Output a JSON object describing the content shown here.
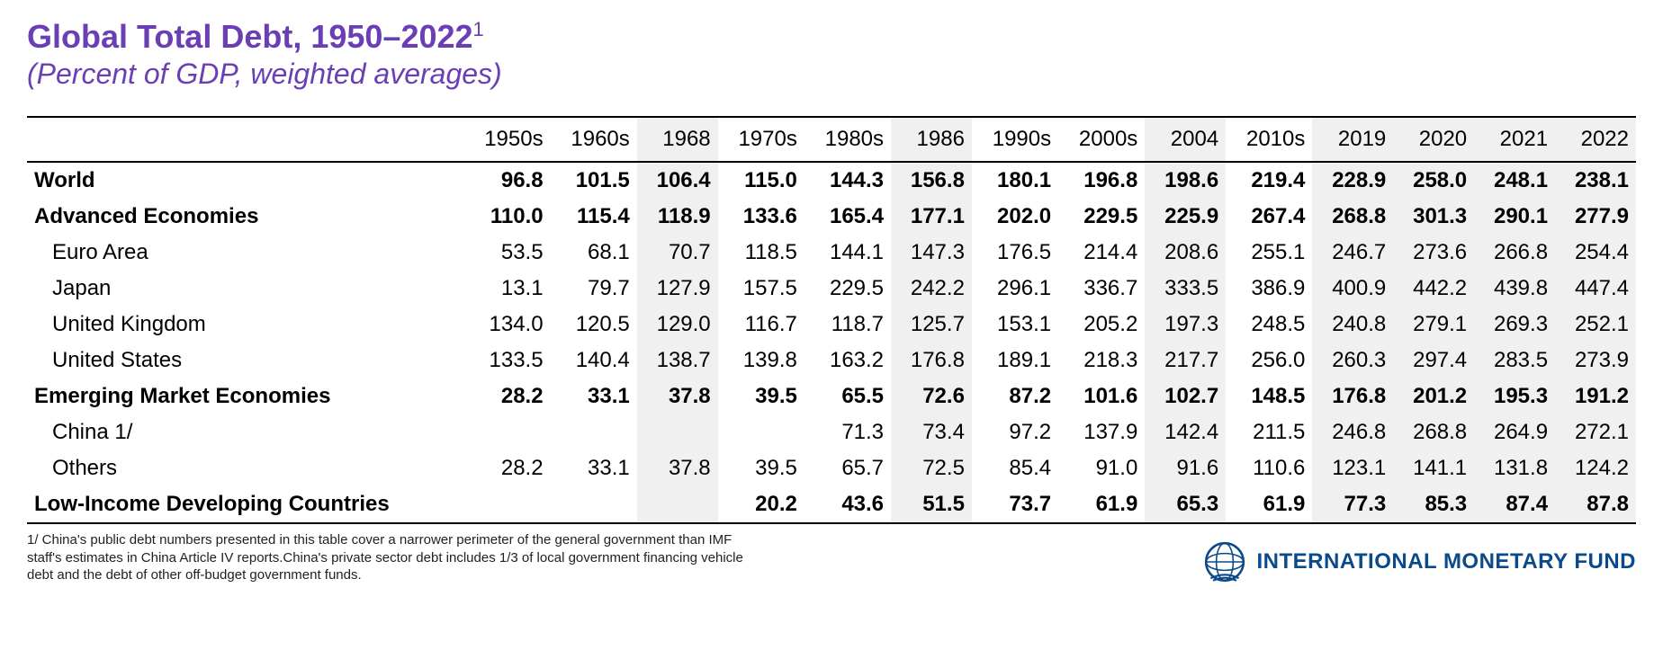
{
  "title_main": "Global Total Debt, 1950–2022",
  "title_sup": "1",
  "subtitle": "(Percent of GDP, weighted averages)",
  "colors": {
    "title_color": "#6a3fb5",
    "shade_bg": "#f0f0f0",
    "border": "#000000",
    "logo_text": "#0a4a8a",
    "logo_blue": "#0a4a8a",
    "background": "#ffffff"
  },
  "typography": {
    "title_fontsize": 36,
    "subtitle_fontsize": 32,
    "table_fontsize": 24,
    "footnote_fontsize": 15,
    "logo_fontsize": 24
  },
  "table": {
    "columns": [
      "",
      "1950s",
      "1960s",
      "1968",
      "1970s",
      "1980s",
      "1986",
      "1990s",
      "2000s",
      "2004",
      "2010s",
      "2019",
      "2020",
      "2021",
      "2022"
    ],
    "shaded_col_indices": [
      3,
      6,
      9,
      11,
      12,
      13,
      14
    ],
    "rows": [
      {
        "label": "World",
        "bold": true,
        "indent": false,
        "values": [
          "96.8",
          "101.5",
          "106.4",
          "115.0",
          "144.3",
          "156.8",
          "180.1",
          "196.8",
          "198.6",
          "219.4",
          "228.9",
          "258.0",
          "248.1",
          "238.1"
        ]
      },
      {
        "label": "Advanced Economies",
        "bold": true,
        "indent": false,
        "values": [
          "110.0",
          "115.4",
          "118.9",
          "133.6",
          "165.4",
          "177.1",
          "202.0",
          "229.5",
          "225.9",
          "267.4",
          "268.8",
          "301.3",
          "290.1",
          "277.9"
        ]
      },
      {
        "label": "Euro Area",
        "bold": false,
        "indent": true,
        "values": [
          "53.5",
          "68.1",
          "70.7",
          "118.5",
          "144.1",
          "147.3",
          "176.5",
          "214.4",
          "208.6",
          "255.1",
          "246.7",
          "273.6",
          "266.8",
          "254.4"
        ]
      },
      {
        "label": "Japan",
        "bold": false,
        "indent": true,
        "values": [
          "13.1",
          "79.7",
          "127.9",
          "157.5",
          "229.5",
          "242.2",
          "296.1",
          "336.7",
          "333.5",
          "386.9",
          "400.9",
          "442.2",
          "439.8",
          "447.4"
        ]
      },
      {
        "label": "United Kingdom",
        "bold": false,
        "indent": true,
        "values": [
          "134.0",
          "120.5",
          "129.0",
          "116.7",
          "118.7",
          "125.7",
          "153.1",
          "205.2",
          "197.3",
          "248.5",
          "240.8",
          "279.1",
          "269.3",
          "252.1"
        ]
      },
      {
        "label": "United States",
        "bold": false,
        "indent": true,
        "values": [
          "133.5",
          "140.4",
          "138.7",
          "139.8",
          "163.2",
          "176.8",
          "189.1",
          "218.3",
          "217.7",
          "256.0",
          "260.3",
          "297.4",
          "283.5",
          "273.9"
        ]
      },
      {
        "label": "Emerging Market Economies",
        "bold": true,
        "indent": false,
        "values": [
          "28.2",
          "33.1",
          "37.8",
          "39.5",
          "65.5",
          "72.6",
          "87.2",
          "101.6",
          "102.7",
          "148.5",
          "176.8",
          "201.2",
          "195.3",
          "191.2"
        ]
      },
      {
        "label": "China 1/",
        "bold": false,
        "indent": true,
        "values": [
          "",
          "",
          "",
          "",
          "71.3",
          "73.4",
          "97.2",
          "137.9",
          "142.4",
          "211.5",
          "246.8",
          "268.8",
          "264.9",
          "272.1"
        ]
      },
      {
        "label": "Others",
        "bold": false,
        "indent": true,
        "values": [
          "28.2",
          "33.1",
          "37.8",
          "39.5",
          "65.7",
          "72.5",
          "85.4",
          "91.0",
          "91.6",
          "110.6",
          "123.1",
          "141.1",
          "131.8",
          "124.2"
        ]
      },
      {
        "label": "Low-Income Developing Countries",
        "bold": true,
        "indent": false,
        "values": [
          "",
          "",
          "",
          "20.2",
          "43.6",
          "51.5",
          "73.7",
          "61.9",
          "65.3",
          "61.9",
          "77.3",
          "85.3",
          "87.4",
          "87.8"
        ]
      }
    ]
  },
  "footnote": "1/ China's public debt numbers presented in this table cover a narrower perimeter of the general government than IMF staff's estimates in China Article IV reports.China's private sector debt includes 1/3 of local government financing vehicle debt and the debt of other off-budget government funds.",
  "logo_text": "INTERNATIONAL MONETARY FUND"
}
